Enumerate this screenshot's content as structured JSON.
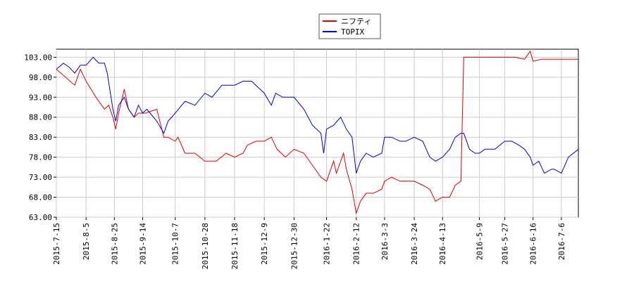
{
  "chart_data": {
    "type": "line",
    "xlim": [
      "2015-7-15",
      "2016-7-18"
    ],
    "xticks": [
      "2015-7-15",
      "2015-8-5",
      "2015-8-25",
      "2015-9-14",
      "2015-10-7",
      "2015-10-28",
      "2015-11-18",
      "2015-12-9",
      "2015-12-30",
      "2016-1-22",
      "2016-2-12",
      "2016-3-3",
      "2016-3-24",
      "2016-4-13",
      "2016-5-9",
      "2016-5-27",
      "2016-6-16",
      "2016-7-6"
    ],
    "ylim": [
      63,
      105
    ],
    "yticks": [
      {
        "value": 63,
        "label": "63.00"
      },
      {
        "value": 68,
        "label": "68.00"
      },
      {
        "value": 73,
        "label": "73.00"
      },
      {
        "value": 78,
        "label": "78.00"
      },
      {
        "value": 83,
        "label": "83.00"
      },
      {
        "value": 88,
        "label": "88.00"
      },
      {
        "value": 93,
        "label": "93.00"
      },
      {
        "value": 98,
        "label": "98.00"
      },
      {
        "value": 103,
        "label": "103.00"
      }
    ],
    "grid": true,
    "legend": "top",
    "series": [
      {
        "name": "ニフティ",
        "color": "#e00000",
        "x": [
          "2015-7-15",
          "2015-7-28",
          "2015-8-1",
          "2015-8-5",
          "2015-8-12",
          "2015-8-18",
          "2015-8-21",
          "2015-8-24",
          "2015-8-26",
          "2015-8-28",
          "2015-9-1",
          "2015-9-4",
          "2015-9-8",
          "2015-9-11",
          "2015-9-16",
          "2015-9-24",
          "2015-9-29",
          "2015-10-2",
          "2015-10-7",
          "2015-10-9",
          "2015-10-14",
          "2015-10-21",
          "2015-10-28",
          "2015-11-5",
          "2015-11-12",
          "2015-11-18",
          "2015-11-24",
          "2015-11-27",
          "2015-12-3",
          "2015-12-9",
          "2015-12-14",
          "2015-12-18",
          "2015-12-24",
          "2015-12-30",
          "2016-1-6",
          "2016-1-12",
          "2016-1-18",
          "2016-1-22",
          "2016-1-27",
          "2016-1-29",
          "2016-2-3",
          "2016-2-5",
          "2016-2-9",
          "2016-2-12",
          "2016-2-15",
          "2016-2-19",
          "2016-2-24",
          "2016-3-1",
          "2016-3-3",
          "2016-3-8",
          "2016-3-14",
          "2016-3-18",
          "2016-3-24",
          "2016-3-30",
          "2016-4-4",
          "2016-4-8",
          "2016-4-13",
          "2016-4-18",
          "2016-4-22",
          "2016-4-26",
          "2016-4-28",
          "2016-5-9",
          "2016-5-20",
          "2016-5-27",
          "2016-6-3",
          "2016-6-10",
          "2016-6-14",
          "2016-6-16",
          "2016-6-22",
          "2016-6-29",
          "2016-7-6",
          "2016-7-18"
        ],
        "values": [
          100,
          96,
          100,
          97,
          93,
          90,
          91,
          88,
          85,
          89,
          95,
          90,
          88,
          89,
          89,
          90,
          83,
          83,
          82,
          83,
          79,
          79,
          77,
          77,
          79,
          78,
          79,
          81,
          82,
          82,
          83,
          80,
          78,
          80,
          79,
          76,
          73,
          72,
          77,
          74,
          79,
          75,
          70,
          64,
          67,
          69,
          69,
          70,
          72,
          73,
          72,
          72,
          72,
          71,
          70,
          67,
          68,
          68,
          71,
          72,
          103,
          103,
          103,
          103,
          103,
          102.5,
          104.5,
          102,
          102.5,
          102.5,
          102.5,
          102.5
        ]
      },
      {
        "name": "TOPIX",
        "color": "#0000e0",
        "x": [
          "2015-7-15",
          "2015-7-20",
          "2015-7-24",
          "2015-7-28",
          "2015-8-1",
          "2015-8-5",
          "2015-8-10",
          "2015-8-14",
          "2015-8-18",
          "2015-8-20",
          "2015-8-24",
          "2015-8-26",
          "2015-8-28",
          "2015-9-1",
          "2015-9-4",
          "2015-9-8",
          "2015-9-11",
          "2015-9-14",
          "2015-9-17",
          "2015-9-24",
          "2015-9-29",
          "2015-10-2",
          "2015-10-7",
          "2015-10-14",
          "2015-10-21",
          "2015-10-28",
          "2015-11-2",
          "2015-11-9",
          "2015-11-18",
          "2015-11-24",
          "2015-11-30",
          "2015-12-3",
          "2015-12-9",
          "2015-12-14",
          "2015-12-17",
          "2015-12-22",
          "2015-12-30",
          "2016-1-6",
          "2016-1-12",
          "2016-1-18",
          "2016-1-20",
          "2016-1-22",
          "2016-1-27",
          "2016-2-1",
          "2016-2-5",
          "2016-2-9",
          "2016-2-12",
          "2016-2-15",
          "2016-2-19",
          "2016-2-24",
          "2016-3-1",
          "2016-3-3",
          "2016-3-8",
          "2016-3-14",
          "2016-3-18",
          "2016-3-24",
          "2016-3-30",
          "2016-4-4",
          "2016-4-8",
          "2016-4-13",
          "2016-4-18",
          "2016-4-22",
          "2016-4-26",
          "2016-4-28",
          "2016-5-2",
          "2016-5-6",
          "2016-5-9",
          "2016-5-13",
          "2016-5-20",
          "2016-5-27",
          "2016-6-1",
          "2016-6-6",
          "2016-6-10",
          "2016-6-14",
          "2016-6-16",
          "2016-6-20",
          "2016-6-24",
          "2016-6-29",
          "2016-7-1",
          "2016-7-6",
          "2016-7-11",
          "2016-7-18"
        ],
        "values": [
          100,
          101.5,
          100.5,
          99,
          101,
          101,
          103,
          101.5,
          101.5,
          99,
          90,
          87,
          91,
          93,
          90,
          88,
          91,
          89,
          90,
          87,
          84,
          87,
          89,
          92,
          91,
          94,
          93,
          96,
          96,
          97,
          97,
          96,
          94,
          91,
          94,
          93,
          93,
          90,
          86,
          84,
          79,
          85,
          86,
          88,
          85,
          83,
          74,
          77,
          79,
          78,
          79,
          83,
          83,
          82,
          82,
          83,
          82,
          78,
          77,
          78,
          80,
          83,
          84,
          84,
          80,
          79,
          79,
          80,
          80,
          82,
          82,
          81,
          80,
          78,
          76,
          77,
          74,
          75,
          75,
          74,
          78,
          80
        ]
      }
    ]
  }
}
